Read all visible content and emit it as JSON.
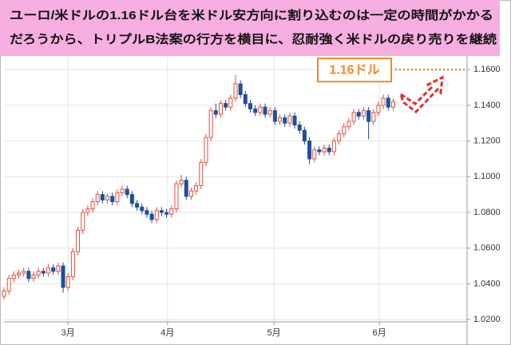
{
  "chart_data": {
    "type": "candlestick",
    "title_lines": [
      "ユーロ/米ドルの1.16ドル台を米ドル安方向に割り込むのは一定の時間がかかる",
      "だろうから、トリプルB法案の行方を横目に、忍耐強く米ドルの戻り売りを継続"
    ],
    "callout": "1.16ドル",
    "callout_value": 1.16,
    "up_color": "#e0503f",
    "down_color": "#1d4f9c",
    "callout_color": "#f08a24",
    "banner_color": "#f7aee0",
    "grid": true,
    "xlim": [
      0,
      94
    ],
    "xticks": [
      {
        "value": 13,
        "label": "3月"
      },
      {
        "value": 33.2,
        "label": "4月"
      },
      {
        "value": 54.8,
        "label": "5月"
      },
      {
        "value": 76.2,
        "label": "6月"
      }
    ],
    "ylim": [
      1.0187,
      1.199
    ],
    "yticks": [
      {
        "value": 1.02,
        "label": "1.0200"
      },
      {
        "value": 1.04,
        "label": "1.0400"
      },
      {
        "value": 1.06,
        "label": "1.0600"
      },
      {
        "value": 1.08,
        "label": "1.0800"
      },
      {
        "value": 1.1,
        "label": "1.1000"
      },
      {
        "value": 1.12,
        "label": "1.1200"
      },
      {
        "value": 1.14,
        "label": "1.1400"
      },
      {
        "value": 1.16,
        "label": "1.1600"
      }
    ],
    "x": [
      0,
      1,
      2,
      3,
      4,
      5,
      6,
      7,
      8,
      9,
      10,
      11,
      12,
      13,
      14,
      15,
      16,
      17,
      18,
      19,
      20,
      21,
      22,
      23,
      24,
      25,
      26,
      27,
      28,
      29,
      30,
      31,
      32,
      33,
      34,
      35,
      36,
      37,
      38,
      39,
      40,
      41,
      42,
      43,
      44,
      45,
      46,
      47,
      48,
      49,
      50,
      51,
      52,
      53,
      54,
      55,
      56,
      57,
      58,
      59,
      60,
      61,
      62,
      63,
      64,
      65,
      66,
      67,
      68,
      69,
      70,
      71,
      72,
      73,
      74,
      75,
      76,
      77,
      78,
      79
    ],
    "open": [
      1.033,
      1.036,
      1.043,
      1.045,
      1.046,
      1.047,
      1.043,
      1.045,
      1.047,
      1.046,
      1.049,
      1.047,
      1.05,
      1.038,
      1.044,
      1.058,
      1.07,
      1.08,
      1.082,
      1.086,
      1.09,
      1.087,
      1.089,
      1.086,
      1.091,
      1.093,
      1.09,
      1.085,
      1.083,
      1.081,
      1.079,
      1.076,
      1.081,
      1.08,
      1.079,
      1.082,
      1.096,
      1.098,
      1.089,
      1.092,
      1.095,
      1.108,
      1.122,
      1.137,
      1.135,
      1.141,
      1.139,
      1.144,
      1.152,
      1.146,
      1.141,
      1.138,
      1.136,
      1.139,
      1.135,
      1.137,
      1.131,
      1.133,
      1.13,
      1.134,
      1.129,
      1.126,
      1.12,
      1.11,
      1.115,
      1.114,
      1.116,
      1.114,
      1.12,
      1.124,
      1.128,
      1.131,
      1.136,
      1.134,
      1.137,
      1.131,
      1.136,
      1.14,
      1.144,
      1.139
    ],
    "high": [
      1.038,
      1.045,
      1.047,
      1.048,
      1.049,
      1.049,
      1.047,
      1.049,
      1.049,
      1.051,
      1.051,
      1.052,
      1.052,
      1.046,
      1.06,
      1.072,
      1.082,
      1.084,
      1.088,
      1.092,
      1.092,
      1.091,
      1.091,
      1.093,
      1.095,
      1.095,
      1.092,
      1.087,
      1.085,
      1.083,
      1.081,
      1.083,
      1.083,
      1.082,
      1.084,
      1.098,
      1.101,
      1.1,
      1.094,
      1.097,
      1.11,
      1.124,
      1.139,
      1.141,
      1.143,
      1.143,
      1.146,
      1.157,
      1.154,
      1.148,
      1.143,
      1.14,
      1.141,
      1.141,
      1.139,
      1.139,
      1.135,
      1.135,
      1.136,
      1.136,
      1.131,
      1.128,
      1.122,
      1.117,
      1.117,
      1.118,
      1.118,
      1.122,
      1.126,
      1.13,
      1.133,
      1.138,
      1.138,
      1.139,
      1.139,
      1.138,
      1.142,
      1.146,
      1.146,
      1.144
    ],
    "low": [
      1.031,
      1.034,
      1.041,
      1.043,
      1.044,
      1.041,
      1.041,
      1.043,
      1.044,
      1.044,
      1.045,
      1.045,
      1.035,
      1.036,
      1.042,
      1.056,
      1.068,
      1.078,
      1.08,
      1.084,
      1.085,
      1.085,
      1.084,
      1.084,
      1.089,
      1.088,
      1.083,
      1.081,
      1.079,
      1.077,
      1.074,
      1.074,
      1.078,
      1.077,
      1.077,
      1.08,
      1.094,
      1.087,
      1.087,
      1.09,
      1.093,
      1.106,
      1.12,
      1.133,
      1.133,
      1.137,
      1.137,
      1.142,
      1.144,
      1.139,
      1.136,
      1.134,
      1.134,
      1.133,
      1.133,
      1.129,
      1.129,
      1.128,
      1.128,
      1.127,
      1.124,
      1.118,
      1.107,
      1.108,
      1.112,
      1.112,
      1.112,
      1.112,
      1.118,
      1.122,
      1.126,
      1.129,
      1.132,
      1.132,
      1.121,
      1.129,
      1.134,
      1.138,
      1.137,
      1.137
    ],
    "close": [
      1.036,
      1.043,
      1.045,
      1.046,
      1.047,
      1.043,
      1.045,
      1.047,
      1.046,
      1.049,
      1.047,
      1.05,
      1.038,
      1.044,
      1.058,
      1.07,
      1.08,
      1.082,
      1.086,
      1.09,
      1.087,
      1.089,
      1.086,
      1.091,
      1.093,
      1.09,
      1.085,
      1.083,
      1.081,
      1.079,
      1.076,
      1.081,
      1.08,
      1.079,
      1.082,
      1.096,
      1.098,
      1.089,
      1.092,
      1.095,
      1.108,
      1.122,
      1.137,
      1.135,
      1.141,
      1.139,
      1.144,
      1.152,
      1.146,
      1.141,
      1.138,
      1.136,
      1.139,
      1.135,
      1.137,
      1.131,
      1.133,
      1.13,
      1.134,
      1.129,
      1.126,
      1.12,
      1.11,
      1.115,
      1.114,
      1.116,
      1.114,
      1.12,
      1.124,
      1.128,
      1.131,
      1.136,
      1.134,
      1.137,
      1.131,
      1.136,
      1.14,
      1.144,
      1.139,
      1.142
    ]
  }
}
